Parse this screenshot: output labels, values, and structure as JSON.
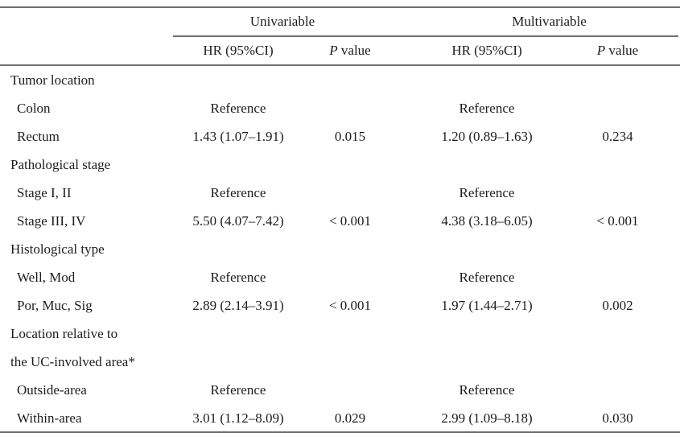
{
  "table": {
    "column_groups": [
      {
        "label": "Univariable"
      },
      {
        "label": "Multivariable"
      }
    ],
    "column_headers": {
      "hr_label": "HR (95%CI)",
      "p_italic": "P",
      "p_rest": " value"
    },
    "rows": [
      {
        "label": "Tumor location",
        "uni_hr": "",
        "uni_p": "",
        "multi_hr": "",
        "multi_p": ""
      },
      {
        "label": "Colon",
        "uni_hr": "Reference",
        "uni_p": "",
        "multi_hr": "Reference",
        "multi_p": ""
      },
      {
        "label": "Rectum",
        "uni_hr": "1.43 (1.07–1.91)",
        "uni_p": "0.015",
        "multi_hr": "1.20 (0.89–1.63)",
        "multi_p": "0.234"
      },
      {
        "label": "Pathological stage",
        "uni_hr": "",
        "uni_p": "",
        "multi_hr": "",
        "multi_p": ""
      },
      {
        "label": "Stage I, II",
        "uni_hr": "Reference",
        "uni_p": "",
        "multi_hr": "Reference",
        "multi_p": ""
      },
      {
        "label": "Stage III, IV",
        "uni_hr": "5.50 (4.07–7.42)",
        "uni_p": "< 0.001",
        "multi_hr": "4.38 (3.18–6.05)",
        "multi_p": "< 0.001"
      },
      {
        "label": "Histological type",
        "uni_hr": "",
        "uni_p": "",
        "multi_hr": "",
        "multi_p": ""
      },
      {
        "label": "Well, Mod",
        "uni_hr": "Reference",
        "uni_p": "",
        "multi_hr": "Reference",
        "multi_p": ""
      },
      {
        "label": "Por, Muc, Sig",
        "uni_hr": "2.89 (2.14–3.91)",
        "uni_p": "< 0.001",
        "multi_hr": "1.97 (1.44–2.71)",
        "multi_p": "0.002"
      },
      {
        "label": "Location relative to",
        "uni_hr": "",
        "uni_p": "",
        "multi_hr": "",
        "multi_p": ""
      },
      {
        "label": "the UC-involved area*",
        "uni_hr": "",
        "uni_p": "",
        "multi_hr": "",
        "multi_p": ""
      },
      {
        "label": "Outside-area",
        "uni_hr": "Reference",
        "uni_p": "",
        "multi_hr": "Reference",
        "multi_p": ""
      },
      {
        "label": "Within-area",
        "uni_hr": "3.01 (1.12–8.09)",
        "uni_p": "0.029",
        "multi_hr": "2.99 (1.09–8.18)",
        "multi_p": "0.030"
      }
    ]
  },
  "colors": {
    "text": "#1c1c1c",
    "rule": "#707070",
    "background": "#ffffff"
  }
}
